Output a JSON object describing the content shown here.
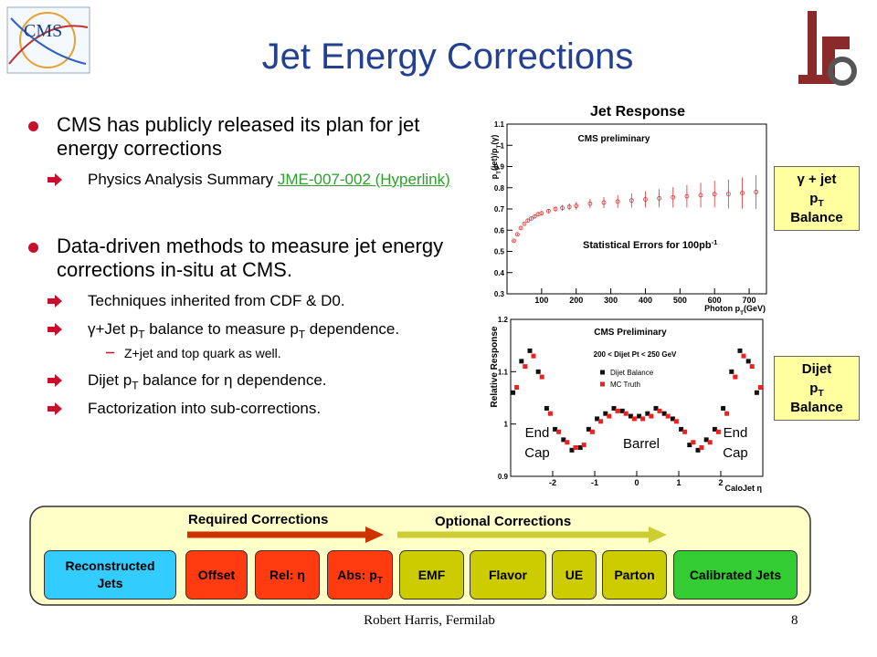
{
  "logos": {
    "cms": "CMS"
  },
  "title": "Jet Energy Corrections",
  "bullets": [
    {
      "text": [
        {
          "text": "CMS has publicly released its plan for jet energy corrections"
        }
      ],
      "subs": [
        {
          "text": [
            {
              "text": "Physics Analysis Summary "
            },
            {
              "text": "JME-007-002 (Hyperlink)",
              "link": true
            }
          ]
        }
      ]
    },
    {
      "text": [
        {
          "text": "Data-driven methods to measure jet energy corrections in-situ at CMS."
        }
      ],
      "subs": [
        {
          "text": [
            {
              "text": "Techniques inherited from CDF & D0."
            }
          ]
        },
        {
          "text": [
            {
              "text": "γ+Jet p"
            },
            {
              "text": "T",
              "sub": true
            },
            {
              "text": " balance to measure p"
            },
            {
              "text": "T",
              "sub": true
            },
            {
              "text": " dependence."
            }
          ],
          "subs": [
            {
              "text": [
                {
                  "text": "Z+jet and top quark as well."
                }
              ]
            }
          ]
        },
        {
          "text": [
            {
              "text": "Dijet p"
            },
            {
              "text": "T",
              "sub": true
            },
            {
              "text": " balance for η dependence."
            }
          ]
        },
        {
          "text": [
            {
              "text": "Factorization into sub-corrections."
            }
          ]
        }
      ]
    }
  ],
  "plots": [
    {
      "label": "Jet Response",
      "title": "CMS preliminary",
      "note": [
        {
          "text": "Statistical Errors for 100pb"
        },
        {
          "text": "-1",
          "sup": true
        }
      ],
      "x_label": [
        {
          "text": "Photon p"
        },
        {
          "text": "T",
          "sub": true
        },
        {
          "text": "(GeV)"
        }
      ],
      "y_label": [
        {
          "text": "p"
        },
        {
          "text": "T",
          "sub": true
        },
        {
          "text": "(jet)/p"
        },
        {
          "text": "T",
          "sub": true
        },
        {
          "text": "(γ)"
        }
      ],
      "xlim": [
        0,
        750
      ],
      "ylim": [
        0.3,
        1.1
      ],
      "xticks": [
        100,
        200,
        300,
        400,
        500,
        600,
        700
      ],
      "yticks": [
        0.3,
        0.4,
        0.5,
        0.6,
        0.7,
        0.8,
        0.9,
        1,
        1.1
      ],
      "color": "#e03030",
      "x": [
        20,
        30,
        40,
        50,
        60,
        70,
        80,
        90,
        100,
        120,
        140,
        160,
        180,
        200,
        240,
        280,
        320,
        360,
        400,
        440,
        480,
        520,
        560,
        600,
        640,
        680,
        720
      ],
      "y": [
        0.55,
        0.58,
        0.61,
        0.63,
        0.645,
        0.655,
        0.665,
        0.675,
        0.68,
        0.69,
        0.7,
        0.705,
        0.71,
        0.715,
        0.725,
        0.73,
        0.735,
        0.74,
        0.745,
        0.75,
        0.755,
        0.76,
        0.765,
        0.77,
        0.77,
        0.775,
        0.78
      ],
      "err": [
        0.005,
        0.005,
        0.005,
        0.006,
        0.006,
        0.007,
        0.007,
        0.008,
        0.009,
        0.01,
        0.012,
        0.014,
        0.016,
        0.018,
        0.022,
        0.026,
        0.03,
        0.034,
        0.038,
        0.043,
        0.048,
        0.053,
        0.058,
        0.063,
        0.068,
        0.074,
        0.08
      ]
    },
    {
      "title": "CMS Preliminary",
      "cut": "200 < Dijet Pt < 250 GeV",
      "x_label": "CaloJet η",
      "y_label": "Relative Response",
      "xlim": [
        -3,
        3
      ],
      "ylim": [
        0.9,
        1.2
      ],
      "xticks": [
        -2,
        -1,
        0,
        1,
        2
      ],
      "yticks": [
        0.9,
        1,
        1.1,
        1.2
      ],
      "regions": [
        "End Cap",
        "Barrel",
        "End Cap"
      ],
      "x": [
        -2.9,
        -2.7,
        -2.5,
        -2.3,
        -2.1,
        -1.9,
        -1.7,
        -1.5,
        -1.3,
        -1.1,
        -0.9,
        -0.7,
        -0.5,
        -0.3,
        -0.1,
        0.1,
        0.3,
        0.5,
        0.7,
        0.9,
        1.1,
        1.3,
        1.5,
        1.7,
        1.9,
        2.1,
        2.3,
        2.5,
        2.7,
        2.9
      ],
      "series": [
        {
          "name": "Dijet Balance",
          "color": "#111111",
          "values": [
            1.06,
            1.12,
            1.14,
            1.1,
            1.03,
            0.99,
            0.97,
            0.95,
            0.955,
            0.99,
            1.01,
            1.02,
            1.03,
            1.025,
            1.015,
            1.015,
            1.02,
            1.03,
            1.02,
            1.01,
            0.99,
            0.96,
            0.95,
            0.97,
            0.99,
            1.03,
            1.1,
            1.14,
            1.12,
            1.06
          ]
        },
        {
          "name": "MC Truth",
          "color": "#ee2020",
          "values": [
            1.07,
            1.11,
            1.13,
            1.09,
            1.02,
            0.985,
            0.965,
            0.955,
            0.96,
            0.985,
            1.005,
            1.015,
            1.025,
            1.02,
            1.01,
            1.01,
            1.015,
            1.025,
            1.015,
            1.005,
            0.985,
            0.965,
            0.955,
            0.965,
            0.985,
            1.02,
            1.09,
            1.13,
            1.11,
            1.07
          ]
        }
      ]
    }
  ],
  "side_boxes": [
    {
      "lines": [
        [
          {
            "text": "γ + jet"
          }
        ],
        [
          {
            "text": "p"
          },
          {
            "text": "T",
            "sub": true
          }
        ],
        [
          {
            "text": "Balance"
          }
        ]
      ]
    },
    {
      "lines": [
        [
          {
            "text": "Dijet"
          }
        ],
        [
          {
            "text": "p"
          },
          {
            "text": "T",
            "sub": true
          }
        ],
        [
          {
            "text": "Balance"
          }
        ]
      ]
    }
  ],
  "pipeline": {
    "required": "Required Corrections",
    "optional": "Optional Corrections",
    "steps": [
      {
        "text": [
          {
            "text": "Reconstructed Jets"
          }
        ],
        "color": "#33ccff"
      },
      {
        "text": [
          {
            "text": "Offset"
          }
        ],
        "color": "#ff3b0f"
      },
      {
        "text": [
          {
            "text": "Rel: η"
          }
        ],
        "color": "#ff3b0f"
      },
      {
        "text": [
          {
            "text": "Abs: p"
          },
          {
            "text": "T",
            "sub": true
          }
        ],
        "color": "#ff3b0f"
      },
      {
        "text": [
          {
            "text": "EMF"
          }
        ],
        "color": "#cccc00"
      },
      {
        "text": [
          {
            "text": "Flavor"
          }
        ],
        "color": "#cccc00"
      },
      {
        "text": [
          {
            "text": "UE"
          }
        ],
        "color": "#cccc00"
      },
      {
        "text": [
          {
            "text": "Parton"
          }
        ],
        "color": "#cccc00"
      },
      {
        "text": [
          {
            "text": "Calibrated Jets"
          }
        ],
        "color": "#33cc33"
      }
    ]
  },
  "footer": {
    "author": "Robert Harris, Fermilab",
    "page": "8"
  }
}
